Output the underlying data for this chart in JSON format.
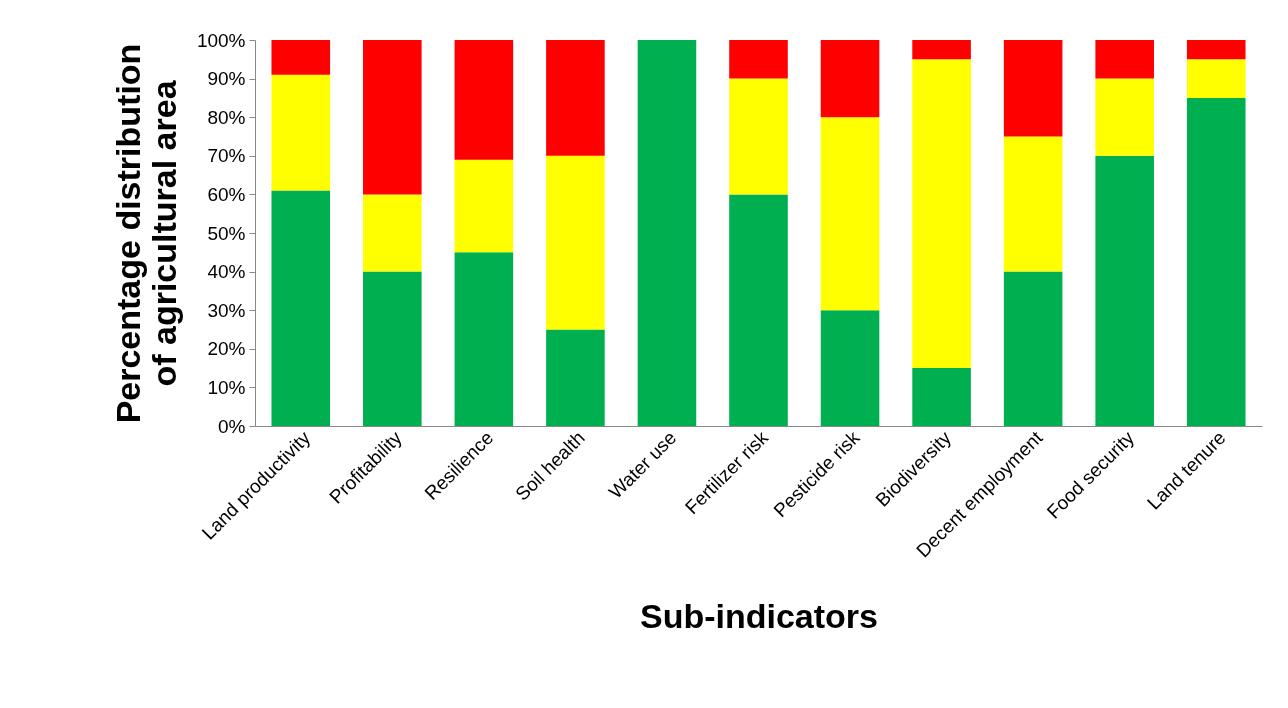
{
  "chart_data": {
    "type": "bar",
    "stacked": true,
    "xlabel": "Sub-indicators",
    "ylabel": "Percentage distribution of agricultural area",
    "categories": [
      "Land productivity",
      "Profitability",
      "Resilience",
      "Soil health",
      "Water use",
      "Fertilizer risk",
      "Pesticide risk",
      "Biodiversity",
      "Decent employment",
      "Food security",
      "Land tenure"
    ],
    "series": [
      {
        "color": "#00b050",
        "values": [
          61,
          40,
          45,
          25,
          100,
          60,
          30,
          15,
          40,
          70,
          85
        ]
      },
      {
        "color": "#ffff00",
        "values": [
          30,
          20,
          24,
          45,
          0,
          30,
          50,
          80,
          35,
          20,
          10
        ]
      },
      {
        "color": "#ff0000",
        "values": [
          9,
          40,
          31,
          30,
          0,
          10,
          20,
          5,
          25,
          10,
          5
        ]
      }
    ],
    "ylim": [
      0,
      100
    ],
    "yticks": [
      {
        "value": 0,
        "label": "0%"
      },
      {
        "value": 10,
        "label": "10%"
      },
      {
        "value": 20,
        "label": "20%"
      },
      {
        "value": 30,
        "label": "30%"
      },
      {
        "value": 40,
        "label": "40%"
      },
      {
        "value": 50,
        "label": "50%"
      },
      {
        "value": 60,
        "label": "60%"
      },
      {
        "value": 70,
        "label": "70%"
      },
      {
        "value": 80,
        "label": "80%"
      },
      {
        "value": 90,
        "label": "90%"
      },
      {
        "value": 100,
        "label": "100%"
      }
    ]
  }
}
